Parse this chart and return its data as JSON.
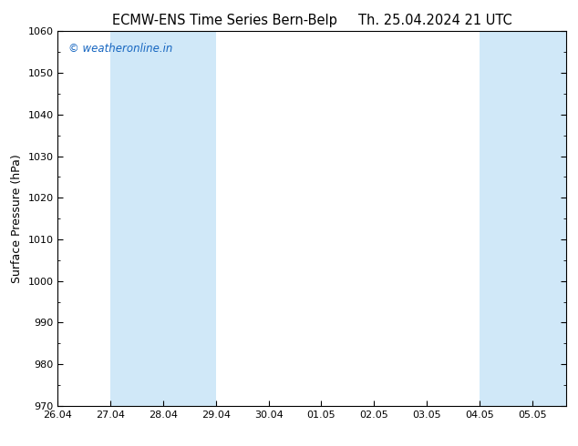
{
  "title_left": "ECMW-ENS Time Series Bern-Belp",
  "title_right": "Th. 25.04.2024 21 UTC",
  "ylabel": "Surface Pressure (hPa)",
  "ylim": [
    970,
    1060
  ],
  "yticks": [
    970,
    980,
    990,
    1000,
    1010,
    1020,
    1030,
    1040,
    1050,
    1060
  ],
  "x_labels": [
    "26.04",
    "27.04",
    "28.04",
    "29.04",
    "30.04",
    "01.05",
    "02.05",
    "03.05",
    "04.05",
    "05.05"
  ],
  "shaded_bands": [
    {
      "xmin": 1.0,
      "xmax": 2.0,
      "color": "#d0e8f8"
    },
    {
      "xmin": 2.0,
      "xmax": 3.0,
      "color": "#d0e8f8"
    },
    {
      "xmin": 8.0,
      "xmax": 9.0,
      "color": "#d0e8f8"
    },
    {
      "xmin": 9.0,
      "xmax": 9.65,
      "color": "#d0e8f8"
    }
  ],
  "watermark_text": "© weatheronline.in",
  "watermark_color": "#1565c0",
  "background_color": "#ffffff",
  "title_fontsize": 10.5,
  "label_fontsize": 9,
  "tick_fontsize": 8
}
